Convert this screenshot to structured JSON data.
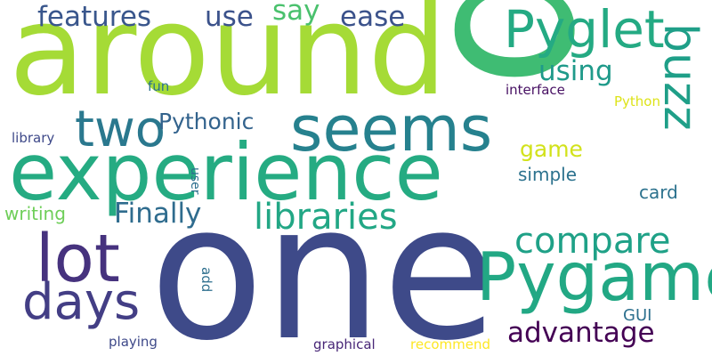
{
  "words": [
    {
      "text": "one",
      "color": "#3e4a89"
    },
    {
      "text": "around",
      "color": "#a5db36"
    },
    {
      "text": "experience",
      "color": "#25ab82"
    },
    {
      "text": "p",
      "color": "#3fbc73"
    },
    {
      "text": "Pygame",
      "color": "#22a884"
    },
    {
      "text": "seems",
      "color": "#26818e"
    },
    {
      "text": "lot",
      "color": "#46327e"
    },
    {
      "text": "two",
      "color": "#2a788e"
    },
    {
      "text": "days",
      "color": "#433e85"
    },
    {
      "text": "Pyglet",
      "color": "#24aa83"
    },
    {
      "text": "buzz",
      "color": "#1f9f88"
    },
    {
      "text": "libraries",
      "color": "#22a785"
    },
    {
      "text": "compare",
      "color": "#1fa187"
    },
    {
      "text": "advantage",
      "color": "#440154"
    },
    {
      "text": "features",
      "color": "#39568c"
    },
    {
      "text": "Finally",
      "color": "#2f6c8e"
    },
    {
      "text": "using",
      "color": "#1f9a8a"
    },
    {
      "text": "use",
      "color": "#3b528b"
    },
    {
      "text": "say",
      "color": "#4ac16d"
    },
    {
      "text": "ease",
      "color": "#3b528b"
    },
    {
      "text": "Pythonic",
      "color": "#33638d"
    },
    {
      "text": "game",
      "color": "#d2e21b"
    },
    {
      "text": "simple",
      "color": "#2c728e"
    },
    {
      "text": "card",
      "color": "#2c728e"
    },
    {
      "text": "writing",
      "color": "#6ece58"
    },
    {
      "text": "GUI",
      "color": "#2d708e"
    },
    {
      "text": "interface",
      "color": "#471063"
    },
    {
      "text": "Python",
      "color": "#dde318"
    },
    {
      "text": "library",
      "color": "#3e4989"
    },
    {
      "text": "fun",
      "color": "#2c728e"
    },
    {
      "text": "user",
      "color": "#2e6f8e"
    },
    {
      "text": "add",
      "color": "#2e6f8e"
    },
    {
      "text": "playing",
      "color": "#3e4989"
    },
    {
      "text": "graphical",
      "color": "#482677"
    },
    {
      "text": "recommend",
      "color": "#fde725"
    }
  ]
}
